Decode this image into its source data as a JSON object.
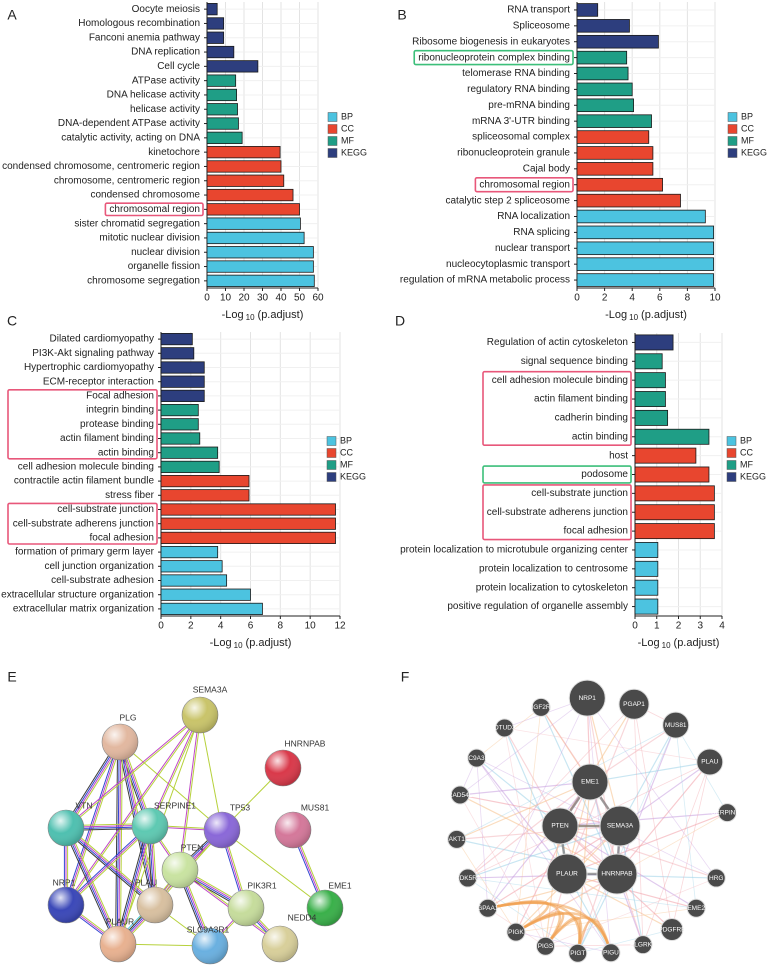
{
  "chart_data": [
    {
      "type": "bar",
      "orientation": "horizontal",
      "panel": "A",
      "categories": [
        "Oocyte meiosis",
        "Homologous recombination",
        "Fanconi anemia pathway",
        "DNA replication",
        "Cell cycle",
        "ATPase activity",
        "DNA helicase activity",
        "helicase activity",
        "DNA-dependent ATPase activity",
        "catalytic activity, acting on DNA",
        "kinetochore",
        "condensed chromosome, centromeric region",
        "chromosome, centromeric region",
        "condensed chromosome",
        "chromosomal region",
        "sister chromatid segregation",
        "mitotic nuclear division",
        "nuclear division",
        "organelle fission",
        "chromosome segregation"
      ],
      "series": [
        {
          "name": "BP",
          "color": "#4cc3e0",
          "values": [
            null,
            null,
            null,
            null,
            null,
            null,
            null,
            null,
            null,
            null,
            null,
            null,
            null,
            null,
            null,
            50.5,
            52.5,
            57.5,
            57.5,
            58
          ]
        },
        {
          "name": "CC",
          "color": "#e8462f",
          "values": [
            null,
            null,
            null,
            null,
            null,
            null,
            null,
            null,
            null,
            null,
            39.5,
            40,
            41.5,
            46.5,
            50,
            null,
            null,
            null,
            null,
            null
          ]
        },
        {
          "name": "MF",
          "color": "#1f9e86",
          "values": [
            null,
            null,
            null,
            null,
            null,
            15.5,
            16,
            16.5,
            17,
            19,
            null,
            null,
            null,
            null,
            null,
            null,
            null,
            null,
            null,
            null
          ]
        },
        {
          "name": "KEGG",
          "color": "#2d3e7e",
          "values": [
            5.5,
            9,
            9,
            14.5,
            27.5,
            null,
            null,
            null,
            null,
            null,
            null,
            null,
            null,
            null,
            null,
            null,
            null,
            null,
            null,
            null
          ]
        }
      ],
      "xlim": [
        0,
        60
      ],
      "xticks": [
        0,
        10,
        20,
        30,
        40,
        50,
        60
      ],
      "xlabel_parts": [
        "-Log",
        "10",
        "(p.adjust)"
      ],
      "grid": true,
      "legend": "right"
    },
    {
      "type": "bar",
      "orientation": "horizontal",
      "panel": "B",
      "categories": [
        "RNA transport",
        "Spliceosome",
        "Ribosome biogenesis in eukaryotes",
        "ribonucleoprotein complex binding",
        "telomerase RNA binding",
        "regulatory RNA binding",
        "pre-mRNA binding",
        "mRNA 3'-UTR binding",
        "spliceosomal complex",
        "ribonucleoprotein granule",
        "Cajal body",
        "chromosomal region",
        "catalytic step 2 spliceosome",
        "RNA localization",
        "RNA splicing",
        "nuclear transport",
        "nucleocytoplasmic transport",
        "regulation of mRNA metabolic process"
      ],
      "series": [
        {
          "name": "BP",
          "color": "#4cc3e0",
          "values": [
            null,
            null,
            null,
            null,
            null,
            null,
            null,
            null,
            null,
            null,
            null,
            null,
            null,
            9.3,
            9.9,
            9.9,
            9.9,
            9.9
          ]
        },
        {
          "name": "CC",
          "color": "#e8462f",
          "values": [
            null,
            null,
            null,
            null,
            null,
            null,
            null,
            null,
            5.2,
            5.5,
            5.5,
            6.2,
            7.5,
            null,
            null,
            null,
            null,
            null
          ]
        },
        {
          "name": "MF",
          "color": "#1f9e86",
          "values": [
            null,
            null,
            null,
            3.6,
            3.7,
            4.0,
            4.1,
            5.4,
            null,
            null,
            null,
            null,
            null,
            null,
            null,
            null,
            null,
            null
          ]
        },
        {
          "name": "KEGG",
          "color": "#2d3e7e",
          "values": [
            1.5,
            3.8,
            5.9,
            null,
            null,
            null,
            null,
            null,
            null,
            null,
            null,
            null,
            null,
            null,
            null,
            null,
            null,
            null
          ]
        }
      ],
      "xlim": [
        0,
        10
      ],
      "xticks": [
        0,
        2,
        4,
        6,
        8,
        10
      ],
      "xlabel_parts": [
        "-Log",
        "10",
        "(p.adjust)"
      ],
      "grid": true,
      "legend": "right"
    },
    {
      "type": "bar",
      "orientation": "horizontal",
      "panel": "C",
      "categories": [
        "Dilated cardiomyopathy",
        "PI3K-Akt signaling pathway",
        "Hypertrophic cardiomyopathy",
        "ECM-receptor interaction",
        "Focal adhesion",
        "integrin binding",
        "protease binding",
        "actin filament binding",
        "actin binding",
        "cell adhesion molecule binding",
        "contractile actin filament bundle",
        "stress fiber",
        "cell-substrate junction",
        "cell-substrate adherens junction",
        "focal adhesion",
        "formation of primary germ layer",
        "cell junction organization",
        "cell-substrate adhesion",
        "extracellular structure organization",
        "extracellular matrix organization"
      ],
      "series": [
        {
          "name": "BP",
          "color": "#4cc3e0",
          "values": [
            null,
            null,
            null,
            null,
            null,
            null,
            null,
            null,
            null,
            null,
            null,
            null,
            null,
            null,
            null,
            3.8,
            4.1,
            4.4,
            6.0,
            6.8
          ]
        },
        {
          "name": "CC",
          "color": "#e8462f",
          "values": [
            null,
            null,
            null,
            null,
            null,
            null,
            null,
            null,
            null,
            null,
            5.9,
            5.9,
            11.7,
            11.7,
            11.7,
            null,
            null,
            null,
            null,
            null
          ]
        },
        {
          "name": "MF",
          "color": "#1f9e86",
          "values": [
            null,
            null,
            null,
            null,
            null,
            2.5,
            2.5,
            2.6,
            3.8,
            3.9,
            null,
            null,
            null,
            null,
            null,
            null,
            null,
            null,
            null,
            null
          ]
        },
        {
          "name": "KEGG",
          "color": "#2d3e7e",
          "values": [
            2.1,
            2.2,
            2.9,
            2.9,
            2.9,
            null,
            null,
            null,
            null,
            null,
            null,
            null,
            null,
            null,
            null,
            null,
            null,
            null,
            null,
            null
          ]
        }
      ],
      "xlim": [
        0,
        12
      ],
      "xticks": [
        0,
        2,
        4,
        6,
        8,
        10,
        12
      ],
      "xlabel_parts": [
        "-Log",
        "10",
        "(p.adjust)"
      ],
      "grid": true,
      "legend": "right"
    },
    {
      "type": "bar",
      "orientation": "horizontal",
      "panel": "D",
      "categories": [
        "Regulation of actin cytoskeleton",
        "signal sequence binding",
        "cell adhesion molecule binding",
        "actin filament binding",
        "cadherin binding",
        "actin binding",
        "host",
        "podosome",
        "cell-substrate junction",
        "cell-substrate adherens junction",
        "focal adhesion",
        "protein localization to microtubule organizing center",
        "protein localization to centrosome",
        "protein localization to cytoskeleton",
        "positive regulation of organelle assembly"
      ],
      "series": [
        {
          "name": "BP",
          "color": "#4cc3e0",
          "values": [
            null,
            null,
            null,
            null,
            null,
            null,
            null,
            null,
            null,
            null,
            null,
            1.05,
            1.05,
            1.05,
            1.05
          ]
        },
        {
          "name": "CC",
          "color": "#e8462f",
          "values": [
            null,
            null,
            null,
            null,
            null,
            null,
            2.8,
            3.4,
            3.65,
            3.65,
            3.65,
            null,
            null,
            null,
            null
          ]
        },
        {
          "name": "MF",
          "color": "#1f9e86",
          "values": [
            null,
            1.25,
            1.4,
            1.4,
            1.5,
            3.4,
            null,
            null,
            null,
            null,
            null,
            null,
            null,
            null,
            null
          ]
        },
        {
          "name": "KEGG",
          "color": "#2d3e7e",
          "values": [
            1.75,
            null,
            null,
            null,
            null,
            null,
            null,
            null,
            null,
            null,
            null,
            null,
            null,
            null,
            null
          ]
        }
      ],
      "xlim": [
        0,
        4
      ],
      "xticks": [
        0,
        1,
        2,
        3,
        4
      ],
      "xlabel_parts": [
        "-Log",
        "10",
        "(p.adjust)"
      ],
      "grid": true,
      "legend": "right"
    }
  ],
  "networks": [
    {
      "panel": "E",
      "nodes": [
        "SEMA3A",
        "PLG",
        "HNRNPAB",
        "VTN",
        "SERPINE1",
        "TP53",
        "MUS81",
        "PTEN",
        "NRP1",
        "PLAU",
        "PIK3R1",
        "EME1",
        "PLAUR",
        "NEDD4",
        "SLC9A3R1"
      ]
    },
    {
      "panel": "F",
      "nodes": [
        "NRP1",
        "PGAP1",
        "IGF2R",
        "OTUD3",
        "MUS81",
        "SLC9A3R1",
        "PLAU",
        "SERPINB2",
        "RAD54L",
        "EME1",
        "PTEN",
        "SEMA3A",
        "AKT1",
        "HRG",
        "CDK5R1",
        "PLAUR",
        "HNRNPAB",
        "EME2",
        "GPAA1",
        "PDGFRB",
        "PIGK",
        "PIGS",
        "PIGT",
        "PIGU",
        "PLGRKT"
      ]
    }
  ]
}
